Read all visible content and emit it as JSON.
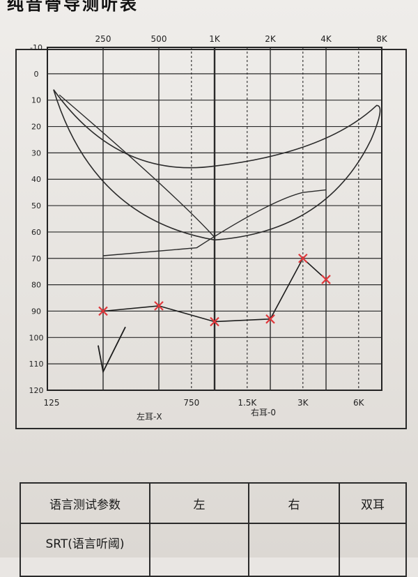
{
  "title": "纯音骨导测听表",
  "audiogram": {
    "top_freq_labels": [
      "250",
      "500",
      "1K",
      "2K",
      "4K",
      "8K"
    ],
    "bottom_freq_labels": [
      "125",
      "750",
      "1.5K",
      "3K",
      "6K"
    ],
    "db_labels": [
      "-10",
      "0",
      "10",
      "20",
      "30",
      "40",
      "50",
      "60",
      "70",
      "80",
      "90",
      "100",
      "110",
      "120"
    ],
    "legend_left": "左耳-X",
    "legend_right": "右耳-0",
    "ink_color": "#e0373b"
  },
  "chart_data": {
    "type": "line",
    "x_scale": "log",
    "xlabel": "",
    "ylabel": "",
    "ylim": [
      120,
      -10
    ],
    "grid": true,
    "series": [
      {
        "marker": "X",
        "color": "#e0373b",
        "points": [
          {
            "x": 250,
            "y": 90
          },
          {
            "x": 500,
            "y": 88
          },
          {
            "x": 1000,
            "y": 94
          },
          {
            "x": 2000,
            "y": 93
          },
          {
            "x": 3000,
            "y": 70
          },
          {
            "x": 4000,
            "y": 78
          }
        ]
      }
    ]
  },
  "params_table": {
    "header_param": "语言测试参数",
    "header_left": "左",
    "header_right": "右",
    "header_both": "双耳",
    "row1_label": "SRT(语言听阈)"
  }
}
